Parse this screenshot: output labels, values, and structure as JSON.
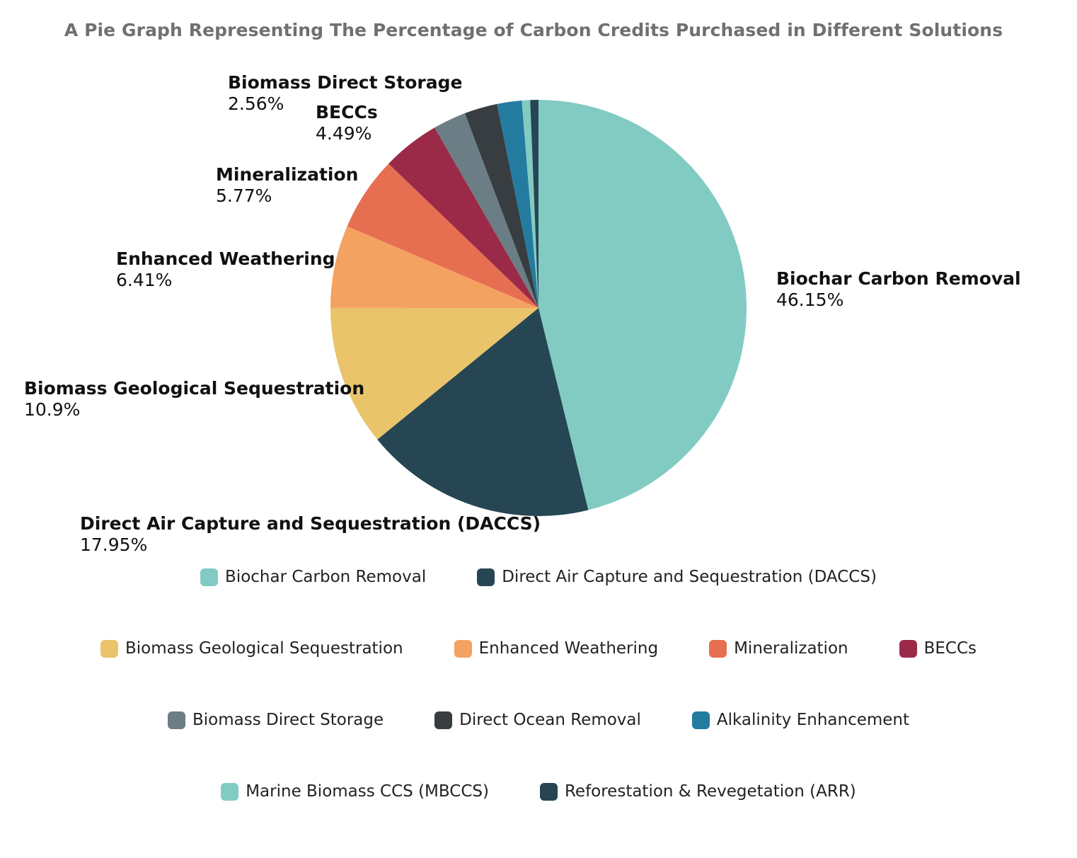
{
  "chart_data": {
    "type": "pie",
    "title": "A Pie Graph Representing The Percentage of Carbon Credits Purchased in Different Solutions",
    "legend_position": "bottom",
    "slices": [
      {
        "label": "Biochar Carbon Removal",
        "value": 46.15,
        "value_label": "46.15%",
        "color": "#82CBC3",
        "labeled": true
      },
      {
        "label": "Direct Air Capture and Sequestration (DACCS)",
        "value": 17.95,
        "value_label": "17.95%",
        "color": "#264653",
        "labeled": true
      },
      {
        "label": "Biomass Geological Sequestration",
        "value": 10.9,
        "value_label": "10.9%",
        "color": "#E9C46A",
        "labeled": true
      },
      {
        "label": "Enhanced Weathering",
        "value": 6.41,
        "value_label": "6.41%",
        "color": "#F4A261",
        "labeled": true
      },
      {
        "label": "Mineralization",
        "value": 5.77,
        "value_label": "5.77%",
        "color": "#E76F51",
        "labeled": true
      },
      {
        "label": "BECCs",
        "value": 4.49,
        "value_label": "4.49%",
        "color": "#9B2A48",
        "labeled": true
      },
      {
        "label": "Biomass Direct Storage",
        "value": 2.56,
        "value_label": "2.56%",
        "color": "#6C7E85",
        "labeled": true
      },
      {
        "label": "Direct Ocean Removal",
        "value": 2.56,
        "value_label": "",
        "color": "#373D40",
        "labeled": false
      },
      {
        "label": "Alkalinity Enhancement",
        "value": 1.92,
        "value_label": "",
        "color": "#247BA0",
        "labeled": false
      },
      {
        "label": "Marine Biomass CCS (MBCCS)",
        "value": 0.64,
        "value_label": "",
        "color": "#82CBC3",
        "labeled": false
      },
      {
        "label": "Reforestation & Revegetation (ARR)",
        "value": 0.64,
        "value_label": "",
        "color": "#264653",
        "labeled": false
      }
    ],
    "legend_rows": [
      [
        0,
        1
      ],
      [
        2,
        3,
        4,
        5
      ],
      [
        6,
        7,
        8
      ],
      [
        9,
        10
      ]
    ]
  }
}
